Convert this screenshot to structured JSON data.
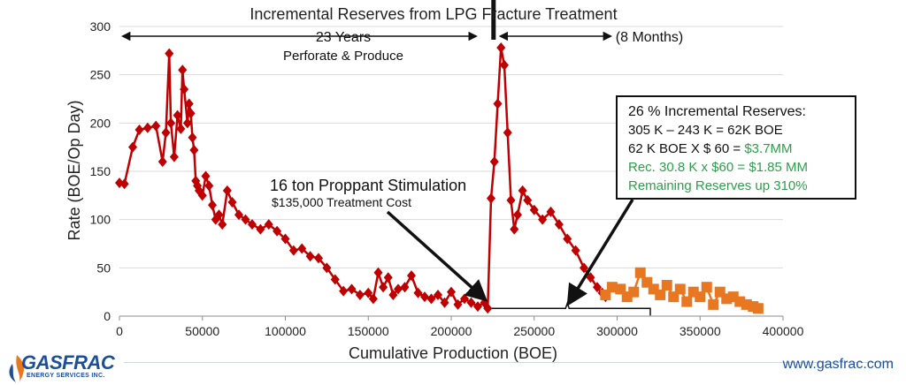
{
  "chart_data": {
    "type": "scatter",
    "title": "Incremental Reserves from LPG Fracture Treatment",
    "xlabel": "Cumulative Production (BOE)",
    "ylabel": "Rate (BOE/Op Day)",
    "xlim": [
      0,
      400000
    ],
    "ylim": [
      0,
      300
    ],
    "x_ticks": [
      0,
      50000,
      100000,
      150000,
      200000,
      250000,
      300000,
      350000,
      400000
    ],
    "y_ticks": [
      0,
      50,
      100,
      150,
      200,
      250,
      300
    ],
    "grid": "horizontal",
    "legend": "none",
    "series": [
      {
        "color": "#c00000",
        "marker": "diamond",
        "x": [
          0,
          3000,
          8000,
          12000,
          17000,
          22000,
          26000,
          28000,
          30000,
          31000,
          33000,
          35000,
          37000,
          38000,
          39000,
          41000,
          42000,
          43000,
          44000,
          45000,
          46000,
          47000,
          48000,
          50000,
          52000,
          54000,
          56000,
          58000,
          60000,
          62000,
          65000,
          68000,
          72000,
          76000,
          80000,
          85000,
          90000,
          95000,
          100000,
          105000,
          110000,
          115000,
          120000,
          125000,
          130000,
          135000,
          140000,
          145000,
          150000,
          153000,
          156000,
          159000,
          162000,
          165000,
          168000,
          172000,
          176000,
          180000,
          184000,
          188000,
          192000,
          196000,
          200000,
          204000,
          208000,
          212000,
          216000,
          220000,
          222000,
          224000,
          226000,
          228000,
          230000,
          232000,
          234000,
          236000,
          238000,
          240000,
          243000,
          246000,
          250000,
          255000,
          260000,
          265000,
          270000,
          275000,
          280000,
          284000,
          288000,
          291000,
          293000
        ],
        "y": [
          138,
          137,
          175,
          193,
          195,
          197,
          160,
          190,
          272,
          200,
          165,
          208,
          194,
          255,
          235,
          200,
          220,
          210,
          185,
          172,
          140,
          135,
          130,
          125,
          145,
          135,
          115,
          100,
          105,
          95,
          130,
          118,
          105,
          100,
          95,
          90,
          95,
          88,
          80,
          68,
          70,
          62,
          60,
          50,
          38,
          26,
          28,
          22,
          24,
          18,
          45,
          30,
          40,
          22,
          28,
          30,
          42,
          24,
          20,
          18,
          22,
          14,
          25,
          12,
          18,
          14,
          10,
          14,
          8,
          122,
          160,
          220,
          278,
          260,
          190,
          120,
          90,
          105,
          130,
          120,
          110,
          100,
          108,
          95,
          80,
          68,
          50,
          40,
          30,
          24,
          20
        ]
      },
      {
        "color": "#e87722",
        "marker": "square",
        "x": [
          293000,
          297000,
          302000,
          306000,
          310000,
          314000,
          318000,
          322000,
          326000,
          330000,
          334000,
          338000,
          342000,
          346000,
          350000,
          354000,
          358000,
          362000,
          366000,
          370000,
          374000,
          378000,
          382000,
          385000
        ],
        "y": [
          22,
          30,
          28,
          20,
          25,
          45,
          35,
          28,
          22,
          32,
          20,
          28,
          15,
          25,
          20,
          30,
          12,
          25,
          18,
          20,
          15,
          12,
          10,
          8
        ]
      }
    ],
    "annotations": {
      "span_left": "23 Years",
      "span_left_sub": "Perforate & Produce",
      "span_right": "(8 Months)",
      "stimulation_title": "16 ton Proppant Stimulation",
      "stimulation_cost": "$135,000 Treatment Cost"
    },
    "info_box": {
      "title": "26 % Incremental Reserves:",
      "line1": "305 K – 243 K =  62K BOE",
      "line2_prefix": "62 K BOE X $ 60 =",
      "line2_value": "$3.7MM",
      "line3": "Rec. 30.8 K x $60 = $1.85 MM",
      "line4": "Remaining Reserves up 310%"
    }
  },
  "footer": {
    "logo_word": "GASFRAC",
    "logo_sub": "ENERGY SERVICES INC.",
    "website": "www.gasfrac.com"
  }
}
